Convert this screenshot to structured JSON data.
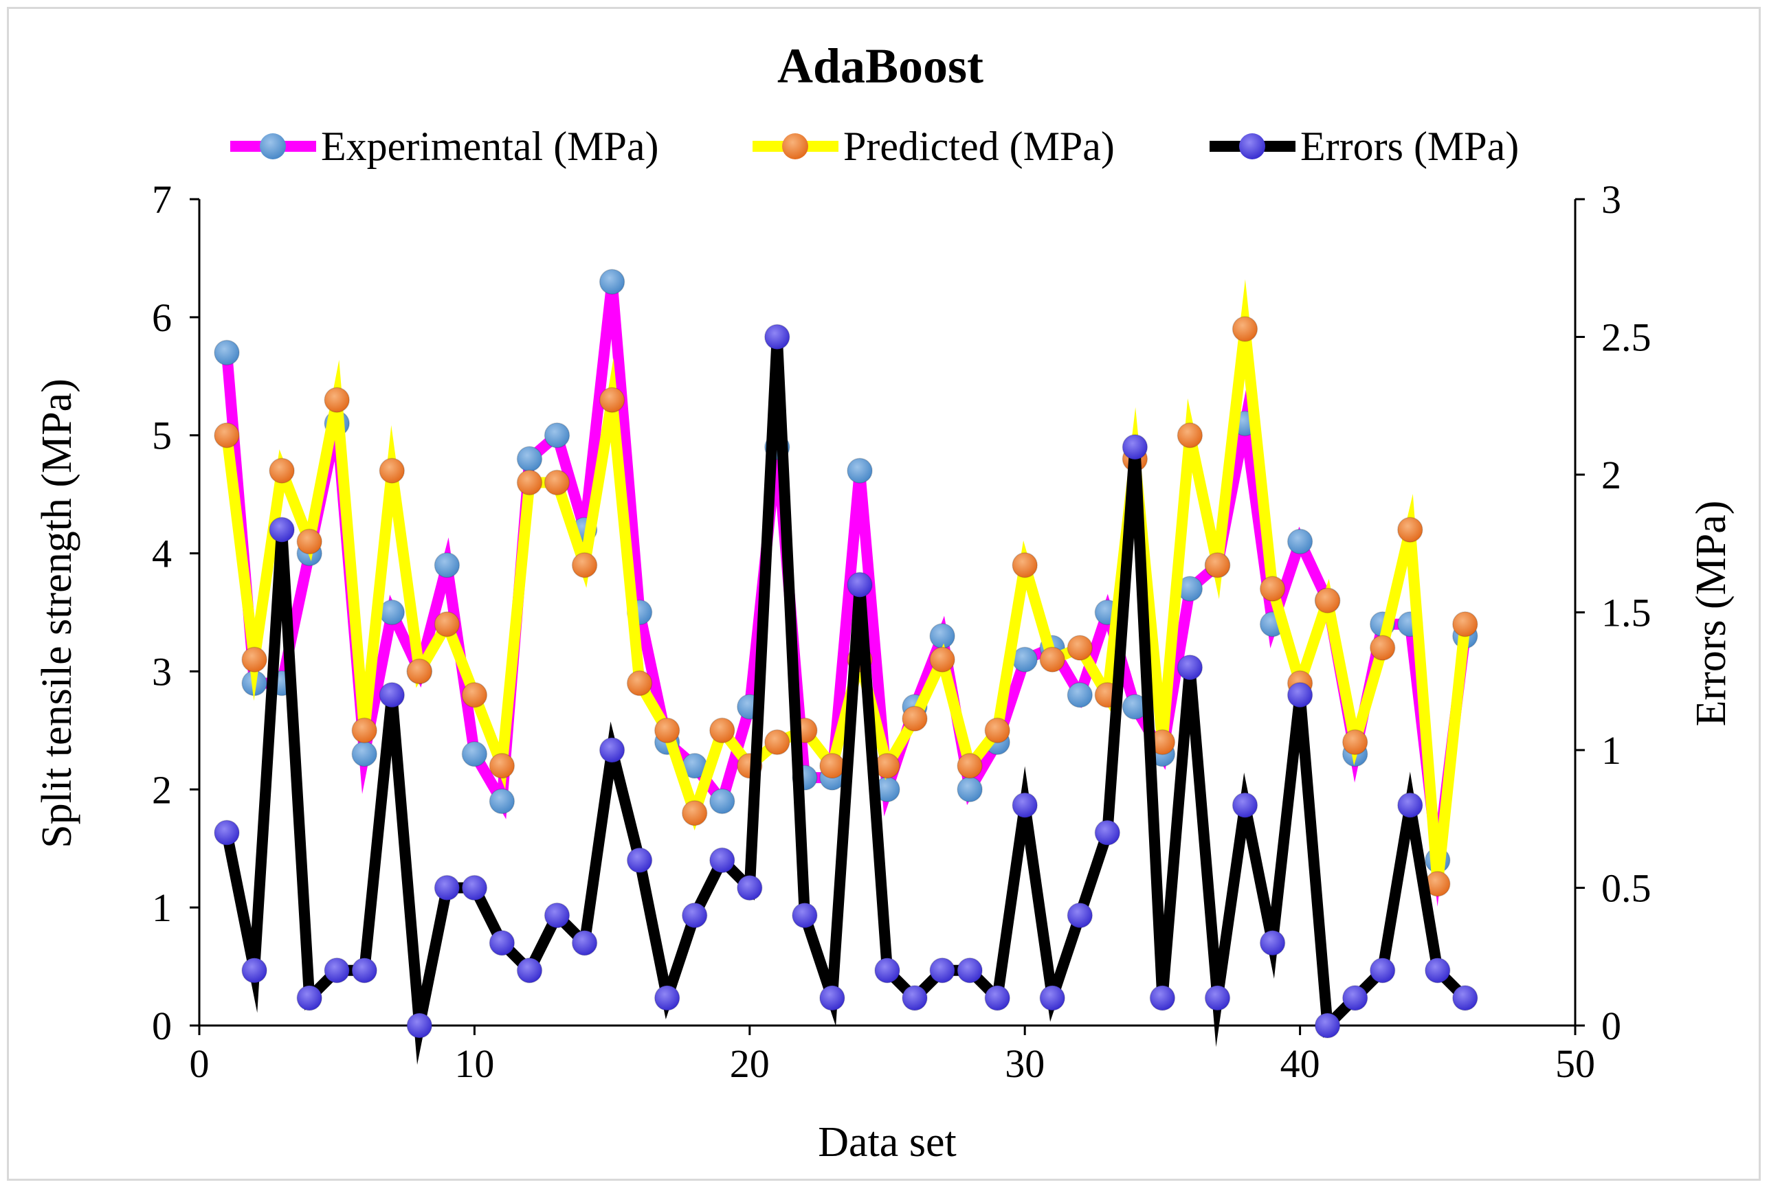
{
  "chart_data": {
    "type": "line",
    "title": "AdaBoost",
    "xlabel": "Data set",
    "ylabel": "Split tensile strength (MPa)",
    "y2label": "Errors (MPa)",
    "xlim": [
      0,
      50
    ],
    "ylim": [
      0,
      7
    ],
    "y2lim": [
      0,
      3
    ],
    "x_ticks": [
      "0",
      "10",
      "20",
      "30",
      "40",
      "50"
    ],
    "y_ticks": [
      "0",
      "1",
      "2",
      "3",
      "4",
      "5",
      "6",
      "7"
    ],
    "y2_ticks": [
      "0",
      "0.5",
      "1",
      "1.5",
      "2",
      "2.5",
      "3"
    ],
    "legend_position": "top",
    "grid": false,
    "x": [
      1,
      2,
      3,
      4,
      5,
      6,
      7,
      8,
      9,
      10,
      11,
      12,
      13,
      14,
      15,
      16,
      17,
      18,
      19,
      20,
      21,
      22,
      23,
      24,
      25,
      26,
      27,
      28,
      29,
      30,
      31,
      32,
      33,
      34,
      35,
      36,
      37,
      38,
      39,
      40,
      41,
      42,
      43,
      44,
      45,
      46
    ],
    "series": [
      {
        "name": "Experimental (MPa)",
        "axis": "left",
        "line_color": "#ff00ff",
        "marker_color": "#5b9bd5",
        "values": [
          5.7,
          2.9,
          2.9,
          4.0,
          5.1,
          2.3,
          3.5,
          3.0,
          3.9,
          2.3,
          1.9,
          4.8,
          5.0,
          4.2,
          6.3,
          3.5,
          2.4,
          2.2,
          1.9,
          2.7,
          4.9,
          2.1,
          2.1,
          4.7,
          2.0,
          2.7,
          3.3,
          2.0,
          2.4,
          3.1,
          3.2,
          2.8,
          3.5,
          2.7,
          2.3,
          3.7,
          3.9,
          5.1,
          3.4,
          4.1,
          3.6,
          2.3,
          3.4,
          3.4,
          1.4,
          3.3
        ]
      },
      {
        "name": "Predicted (MPa)",
        "axis": "left",
        "line_color": "#ffff00",
        "marker_color": "#ed7d31",
        "values": [
          5.0,
          3.1,
          4.7,
          4.1,
          5.3,
          2.5,
          4.7,
          3.0,
          3.4,
          2.8,
          2.2,
          4.6,
          4.6,
          3.9,
          5.3,
          2.9,
          2.5,
          1.8,
          2.5,
          2.2,
          2.4,
          2.5,
          2.2,
          3.1,
          2.2,
          2.6,
          3.1,
          2.2,
          2.5,
          3.9,
          3.1,
          3.2,
          2.8,
          4.8,
          2.4,
          5.0,
          3.9,
          5.9,
          3.7,
          2.9,
          3.6,
          2.4,
          3.2,
          4.2,
          1.2,
          3.4
        ]
      },
      {
        "name": "Errors (MPa)",
        "axis": "right",
        "line_color": "#000000",
        "marker_color": "#4b3ee0",
        "values": [
          0.7,
          0.2,
          1.8,
          0.1,
          0.2,
          0.2,
          1.2,
          0.0,
          0.5,
          0.5,
          0.3,
          0.2,
          0.4,
          0.3,
          1.0,
          0.6,
          0.1,
          0.4,
          0.6,
          0.5,
          2.5,
          0.4,
          0.1,
          1.6,
          0.2,
          0.1,
          0.2,
          0.2,
          0.1,
          0.8,
          0.1,
          0.4,
          0.7,
          2.1,
          0.1,
          1.3,
          0.1,
          0.8,
          0.3,
          1.2,
          0.0,
          0.1,
          0.2,
          0.8,
          0.2,
          0.1
        ]
      }
    ]
  }
}
